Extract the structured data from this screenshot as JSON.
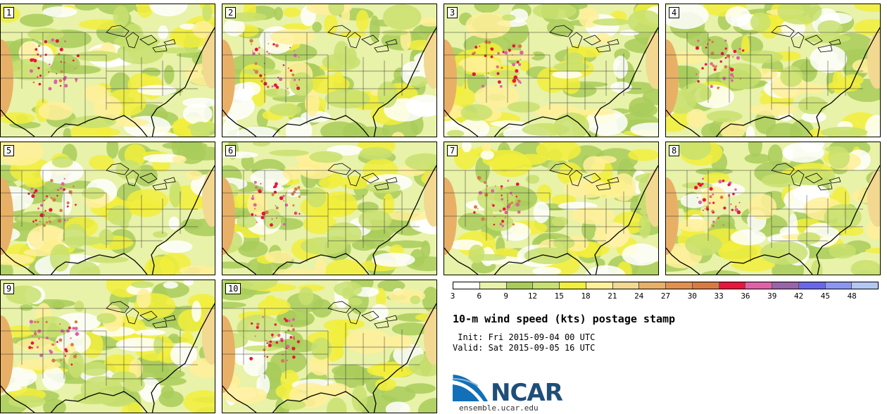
{
  "panels": [
    {
      "label": "1"
    },
    {
      "label": "2"
    },
    {
      "label": "3"
    },
    {
      "label": "4"
    },
    {
      "label": "5"
    },
    {
      "label": "6"
    },
    {
      "label": "7"
    },
    {
      "label": "8"
    },
    {
      "label": "9"
    },
    {
      "label": "10"
    }
  ],
  "legend": {
    "ticks": [
      "3",
      "6",
      "9",
      "12",
      "15",
      "18",
      "21",
      "24",
      "27",
      "30",
      "33",
      "36",
      "39",
      "42",
      "45",
      "48"
    ],
    "colors": [
      "#ffffff",
      "#e8f2a8",
      "#a8cc5a",
      "#c8e070",
      "#f2ee3c",
      "#fff09a",
      "#f2d890",
      "#e8b066",
      "#e09050",
      "#d87a44",
      "#e8163c",
      "#e060a8",
      "#9a64a8",
      "#6a66e8",
      "#8a96f0",
      "#b4c6f2"
    ]
  },
  "title": "10-m wind speed (kts) postage stamp",
  "init": " Init: Fri 2015-09-04 00 UTC",
  "valid": "Valid: Sat 2015-09-05 16 UTC",
  "logo": {
    "text": "NCAR",
    "url": "ensemble.ucar.edu"
  }
}
